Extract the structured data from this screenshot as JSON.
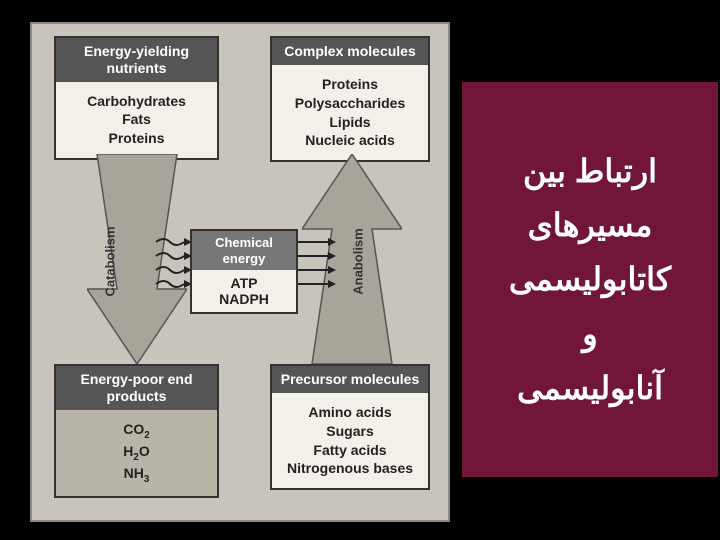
{
  "diagram": {
    "bg": "#c8c4bb",
    "nutrients": {
      "title": "Energy-yielding nutrients",
      "items": [
        "Carbohydrates",
        "Fats",
        "Proteins"
      ]
    },
    "complex": {
      "title": "Complex molecules",
      "items": [
        "Proteins",
        "Polysaccharides",
        "Lipids",
        "Nucleic acids"
      ]
    },
    "endproducts": {
      "title": "Energy-poor end products",
      "items_html": "CO<sub>2</sub><br>H<sub>2</sub>O<br>NH<sub>3</sub>"
    },
    "precursor": {
      "title": "Precursor molecules",
      "items": [
        "Amino acids",
        "Sugars",
        "Fatty acids",
        "Nitrogenous bases"
      ]
    },
    "chem": {
      "title": "Chemical energy",
      "items": [
        "ATP",
        "NADPH"
      ]
    },
    "catabolism_label": "Catabolism",
    "anabolism_label": "Anabolism",
    "arrow_fill": "#a8a49a",
    "arrow_stroke": "#555"
  },
  "right_panel": {
    "bg": "#72153a",
    "text_color": "#ffffff",
    "line1": "ارتباط بین",
    "line2": "مسیرهای",
    "line3": "کاتابولیسمی",
    "line4": "و",
    "line5": "آنابولیسمی"
  }
}
